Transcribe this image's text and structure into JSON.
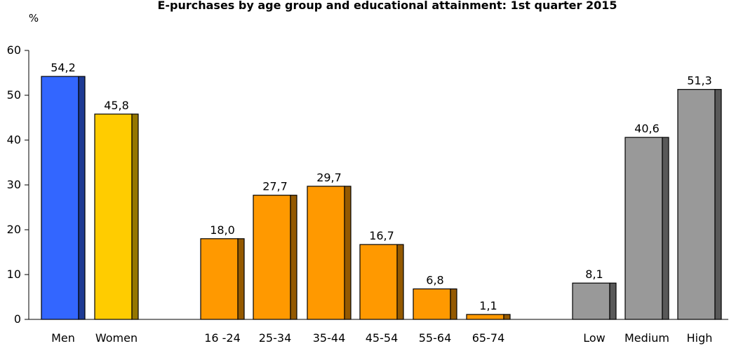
{
  "chart_data": {
    "type": "bar",
    "title": "E-purchases by age group and educational attainment: 1st quarter 2015",
    "ylabel": "%",
    "ylim": [
      0,
      60
    ],
    "yticks": [
      0,
      10,
      20,
      30,
      40,
      50,
      60
    ],
    "grid": false,
    "groups": [
      {
        "categories": [
          "Men",
          "Women"
        ],
        "values": [
          54.2,
          45.8
        ],
        "labels": [
          "54,2",
          "45,8"
        ],
        "colors": [
          "#3366FF",
          "#FFCC00"
        ]
      },
      {
        "categories": [
          "16 -24",
          "25-34",
          "35-44",
          "45-54",
          "55-64",
          "65-74"
        ],
        "values": [
          18.0,
          27.7,
          29.7,
          16.7,
          6.8,
          1.1
        ],
        "labels": [
          "18,0",
          "27,7",
          "29,7",
          "16,7",
          "6,8",
          "1,1"
        ],
        "colors": [
          "#FF9900",
          "#FF9900",
          "#FF9900",
          "#FF9900",
          "#FF9900",
          "#FF9900"
        ]
      },
      {
        "categories": [
          "Low",
          "Medium",
          "High"
        ],
        "values": [
          8.1,
          40.6,
          51.3
        ],
        "labels": [
          "8,1",
          "40,6",
          "51,3"
        ],
        "colors": [
          "#999999",
          "#999999",
          "#999999"
        ]
      }
    ]
  }
}
